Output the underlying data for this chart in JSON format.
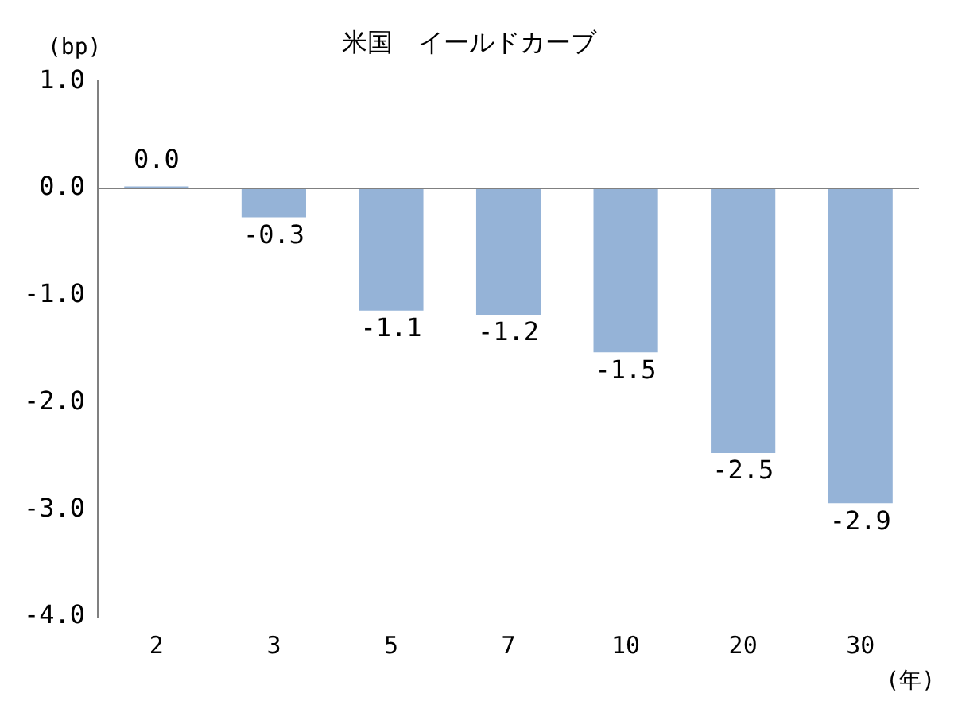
{
  "chart_data": {
    "type": "bar",
    "title": "米国　イールドカーブ",
    "ylabel": "(bp)",
    "xlabel": "(年)",
    "categories": [
      "2",
      "3",
      "5",
      "7",
      "10",
      "20",
      "30"
    ],
    "values": [
      0.02,
      -0.27,
      -1.14,
      -1.18,
      -1.53,
      -2.47,
      -2.94
    ],
    "value_labels": [
      "0.0",
      "-0.3",
      "-1.1",
      "-1.2",
      "-1.5",
      "-2.5",
      "-2.9"
    ],
    "color": "#95b3d7",
    "ylim": [
      -4,
      1
    ],
    "yticks": [
      {
        "value": 1,
        "label": "1.0"
      },
      {
        "value": 0,
        "label": "0.0"
      },
      {
        "value": -1,
        "label": "-1.0"
      },
      {
        "value": -2,
        "label": "-2.0"
      },
      {
        "value": -3,
        "label": "-3.0"
      },
      {
        "value": -4,
        "label": "-4.0"
      }
    ],
    "ref_lines": [
      {
        "axis": "y",
        "value": 0,
        "color": "#808080"
      }
    ],
    "grid": false,
    "legend": false
  }
}
